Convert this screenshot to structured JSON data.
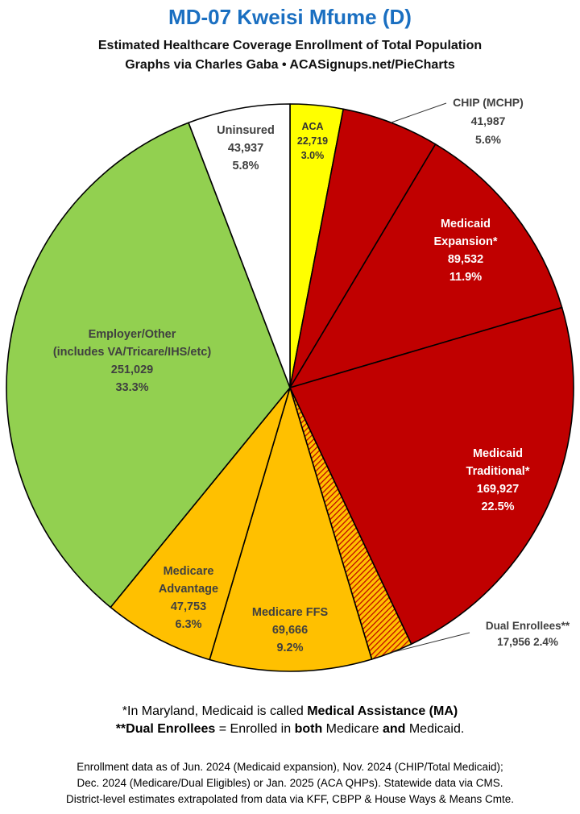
{
  "header": {
    "title": "MD-07 Kweisi Mfume (D)",
    "subtitle_1": "Estimated Healthcare Coverage Enrollment of Total Population",
    "subtitle_2": "Graphs via Charles Gaba  •  ACASignups.net/PieCharts"
  },
  "chart_data": {
    "type": "pie",
    "title": "MD-07 Kweisi Mfume (D)",
    "start_angle": "12 o'clock",
    "direction": "clockwise",
    "slices": [
      {
        "name": "ACA",
        "value": 22719,
        "value_label": "22,719",
        "percent": "3.0%",
        "color": "#ffff00",
        "text_color": "#333333",
        "pattern": "solid"
      },
      {
        "name": "CHIP (MCHP)",
        "value": 41987,
        "value_label": "41,987",
        "percent": "5.6%",
        "color": "#c00000",
        "text_color": "#404040",
        "pattern": "solid",
        "label_outside": true
      },
      {
        "name": "Medicaid Expansion*",
        "value": 89532,
        "value_label": "89,532",
        "percent": "11.9%",
        "color": "#c00000",
        "text_color": "#ffffff",
        "pattern": "solid"
      },
      {
        "name": "Medicaid Traditional*",
        "value": 169927,
        "value_label": "169,927",
        "percent": "22.5%",
        "color": "#c00000",
        "text_color": "#ffffff",
        "pattern": "solid"
      },
      {
        "name": "Dual Enrollees**",
        "value": 17956,
        "value_label": "17,956",
        "percent": "2.4%",
        "color": "#ffc000",
        "text_color": "#404040",
        "pattern": "red-hatch",
        "label_outside": true
      },
      {
        "name": "Medicare FFS",
        "value": 69666,
        "value_label": "69,666",
        "percent": "9.2%",
        "color": "#ffc000",
        "text_color": "#404040",
        "pattern": "solid"
      },
      {
        "name": "Medicare Advantage",
        "value": 47753,
        "value_label": "47,753",
        "percent": "6.3%",
        "color": "#ffc000",
        "text_color": "#404040",
        "pattern": "solid"
      },
      {
        "name": "Employer/Other (includes VA/Tricare/IHS/etc)",
        "value": 251029,
        "value_label": "251,029",
        "percent": "33.3%",
        "color": "#92d050",
        "text_color": "#404040",
        "pattern": "solid"
      },
      {
        "name": "Uninsured",
        "value": 43937,
        "value_label": "43,937",
        "percent": "5.8%",
        "color": "#ffffff",
        "text_color": "#404040",
        "pattern": "solid"
      }
    ]
  },
  "notes": {
    "line1_pre": "*In Maryland, Medicaid is called ",
    "line1_bold": "Medical Assistance (MA)",
    "line2_bold1": "**Dual Enrollees",
    "line2_mid1": " = Enrolled in ",
    "line2_bold2": "both",
    "line2_mid2": " Medicare ",
    "line2_bold3": "and",
    "line2_end": " Medicaid."
  },
  "source": {
    "line1": "Enrollment data as of Jun. 2024 (Medicaid expansion), Nov. 2024 (CHIP/Total Medicaid);",
    "line2": "Dec. 2024 (Medicare/Dual Eligibles) or Jan. 2025 (ACA QHPs). Statewide data via CMS.",
    "line3": "District-level estimates extrapolated from data via KFF, CBPP & House Ways & Means Cmte."
  }
}
